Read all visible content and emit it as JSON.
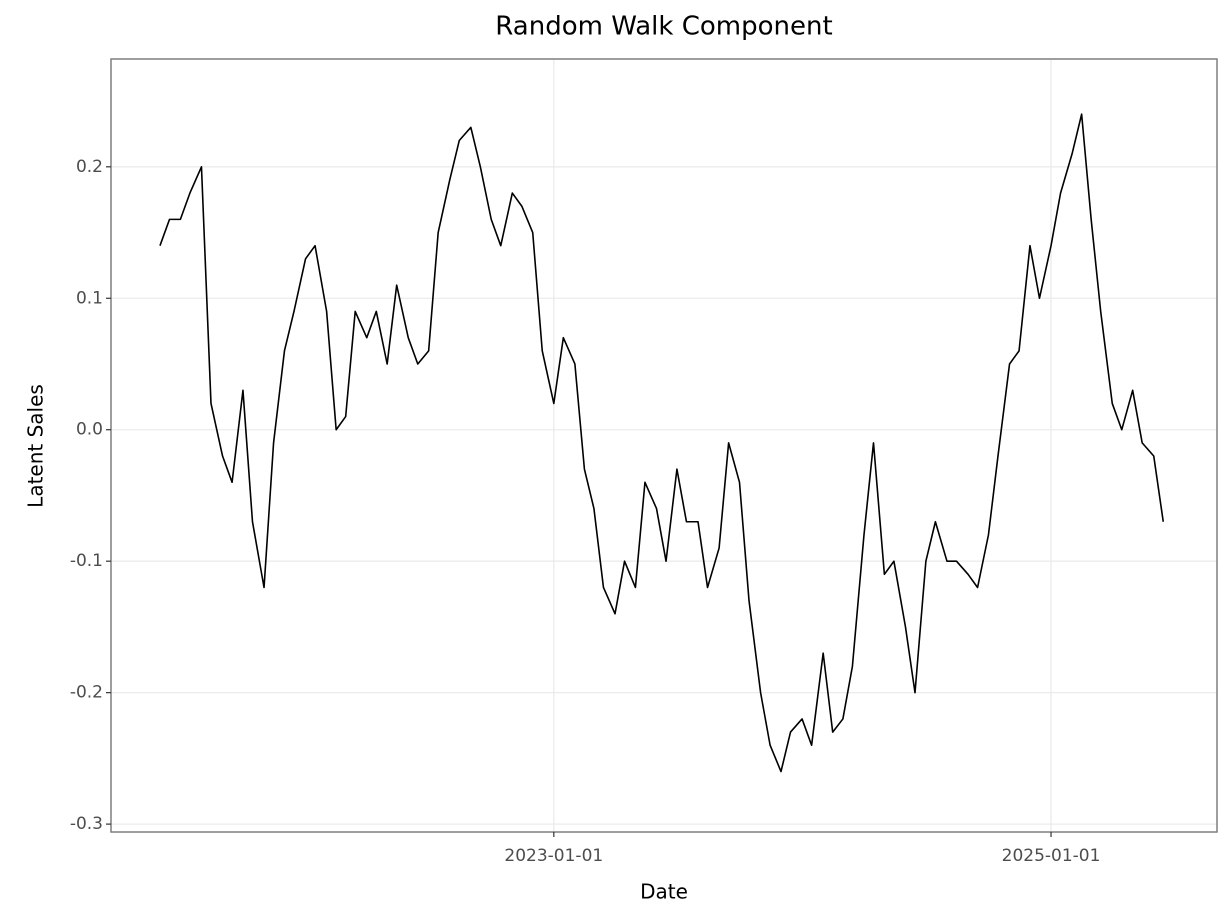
{
  "chart_data": {
    "type": "line",
    "title": "Random Walk Component",
    "x_label": "Date",
    "y_label": "Latent Sales",
    "x": [
      "2021-06-01",
      "2021-06-15",
      "2021-07-01",
      "2021-07-15",
      "2021-08-01",
      "2021-08-15",
      "2021-09-01",
      "2021-09-15",
      "2021-10-01",
      "2021-10-15",
      "2021-11-01",
      "2021-11-15",
      "2021-12-01",
      "2021-12-15",
      "2022-01-01",
      "2022-01-15",
      "2022-02-01",
      "2022-02-15",
      "2022-03-01",
      "2022-03-15",
      "2022-04-01",
      "2022-04-15",
      "2022-05-01",
      "2022-05-15",
      "2022-06-01",
      "2022-06-15",
      "2022-07-01",
      "2022-07-15",
      "2022-08-01",
      "2022-08-15",
      "2022-09-01",
      "2022-09-15",
      "2022-10-01",
      "2022-10-15",
      "2022-11-01",
      "2022-11-15",
      "2022-12-01",
      "2022-12-15",
      "2023-01-01",
      "2023-01-15",
      "2023-02-01",
      "2023-02-15",
      "2023-03-01",
      "2023-03-15",
      "2023-04-01",
      "2023-04-15",
      "2023-05-01",
      "2023-05-15",
      "2023-06-01",
      "2023-06-15",
      "2023-07-01",
      "2023-07-15",
      "2023-08-01",
      "2023-08-15",
      "2023-09-01",
      "2023-09-15",
      "2023-10-01",
      "2023-10-15",
      "2023-11-01",
      "2023-11-15",
      "2023-12-01",
      "2023-12-15",
      "2024-01-01",
      "2024-01-15",
      "2024-02-01",
      "2024-02-15",
      "2024-03-01",
      "2024-03-15",
      "2024-04-01",
      "2024-04-15",
      "2024-05-01",
      "2024-05-15",
      "2024-06-01",
      "2024-06-15",
      "2024-07-01",
      "2024-07-15",
      "2024-08-01",
      "2024-08-15",
      "2024-09-01",
      "2024-09-15",
      "2024-10-01",
      "2024-10-15",
      "2024-11-01",
      "2024-11-15",
      "2024-12-01",
      "2024-12-15",
      "2025-01-01",
      "2025-01-15",
      "2025-02-01",
      "2025-02-15",
      "2025-03-01",
      "2025-03-15",
      "2025-04-01",
      "2025-04-15",
      "2025-05-01",
      "2025-05-15",
      "2025-06-01",
      "2025-06-15"
    ],
    "values": [
      0.14,
      0.16,
      0.16,
      0.18,
      0.2,
      0.02,
      -0.02,
      -0.04,
      0.03,
      -0.07,
      -0.12,
      -0.01,
      0.06,
      0.09,
      0.13,
      0.14,
      0.09,
      0.0,
      0.01,
      0.09,
      0.07,
      0.09,
      0.05,
      0.11,
      0.07,
      0.05,
      0.06,
      0.15,
      0.19,
      0.22,
      0.23,
      0.2,
      0.16,
      0.14,
      0.18,
      0.17,
      0.15,
      0.06,
      0.02,
      0.07,
      0.05,
      -0.03,
      -0.06,
      -0.12,
      -0.14,
      -0.1,
      -0.12,
      -0.04,
      -0.06,
      -0.1,
      -0.03,
      -0.07,
      -0.07,
      -0.12,
      -0.09,
      -0.01,
      -0.04,
      -0.13,
      -0.2,
      -0.24,
      -0.26,
      -0.23,
      -0.22,
      -0.24,
      -0.17,
      -0.23,
      -0.22,
      -0.18,
      -0.08,
      -0.01,
      -0.11,
      -0.1,
      -0.15,
      -0.2,
      -0.1,
      -0.07,
      -0.1,
      -0.1,
      -0.11,
      -0.12,
      -0.08,
      -0.02,
      0.05,
      0.06,
      0.14,
      0.1,
      0.14,
      0.18,
      0.21,
      0.24,
      0.16,
      0.09,
      0.02,
      0.0,
      0.03,
      -0.01,
      -0.02,
      -0.07
    ],
    "color": "#000000",
    "xlim": [
      "2021-03-21",
      "2025-09-02"
    ],
    "xticks": [
      "2023-01-01",
      "2025-01-01"
    ],
    "ylim": [
      -0.306,
      0.282
    ],
    "yticks": [
      -0.3,
      -0.2,
      -0.1,
      {
        "value": 0,
        "label": "0.0"
      },
      0.1,
      0.2
    ],
    "grid": true
  }
}
